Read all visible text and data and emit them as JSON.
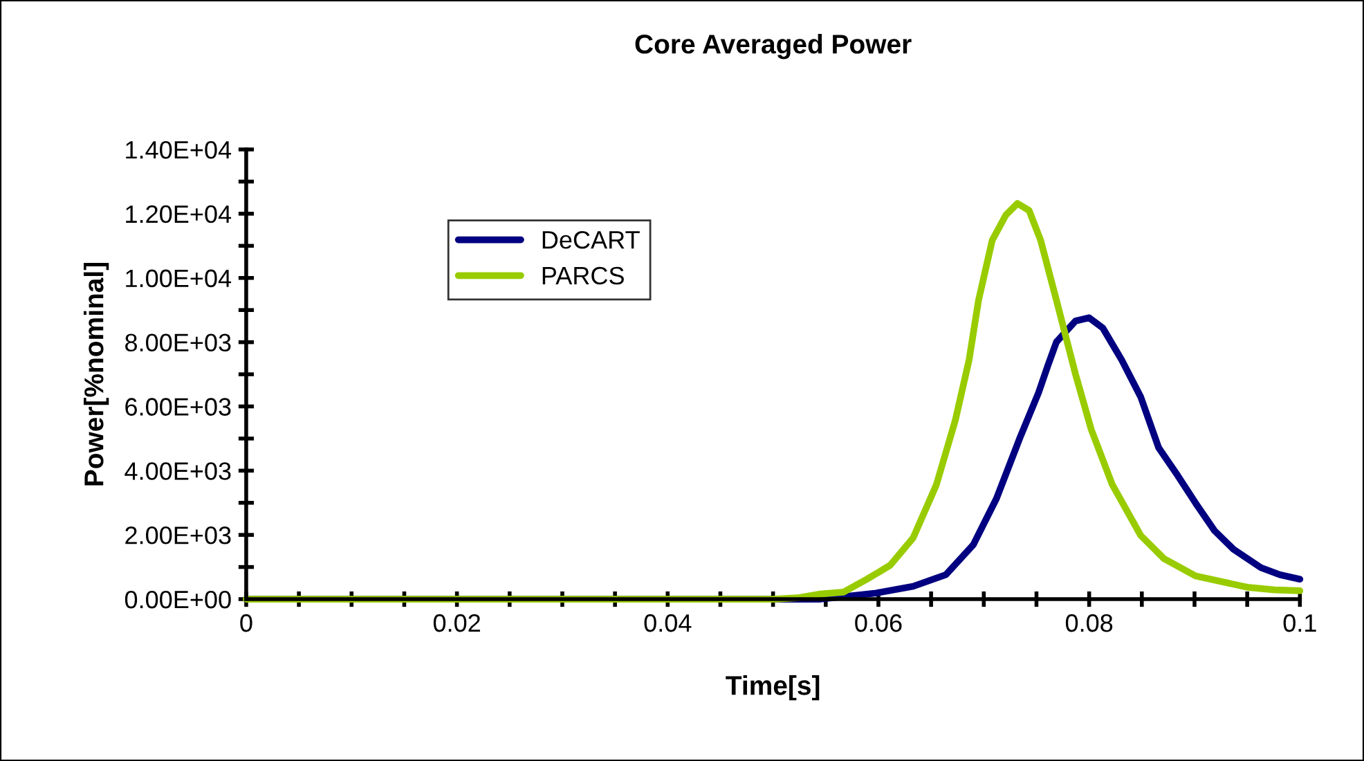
{
  "chart_data": {
    "type": "line",
    "title": "Core Averaged Power",
    "xlabel": "Time[s]",
    "ylabel": "Power[%nominal]",
    "xlim": [
      0,
      0.1
    ],
    "ylim": [
      0,
      14000
    ],
    "xticks": [
      0,
      {
        "value": 0.005,
        "label": null
      },
      {
        "value": 0.01,
        "label": null
      },
      {
        "value": 0.015,
        "label": null
      },
      0.02,
      {
        "value": 0.025,
        "label": null
      },
      {
        "value": 0.03,
        "label": null
      },
      {
        "value": 0.035,
        "label": null
      },
      0.04,
      {
        "value": 0.045,
        "label": null
      },
      {
        "value": 0.05,
        "label": null
      },
      {
        "value": 0.055,
        "label": null
      },
      0.06,
      {
        "value": 0.065,
        "label": null
      },
      {
        "value": 0.07,
        "label": null
      },
      {
        "value": 0.075,
        "label": null
      },
      0.08,
      {
        "value": 0.085,
        "label": null
      },
      {
        "value": 0.09,
        "label": null
      },
      {
        "value": 0.095,
        "label": null
      },
      0.1
    ],
    "yticks": [
      {
        "value": 0,
        "label": "0.00E+00"
      },
      {
        "value": 1000,
        "label": null
      },
      {
        "value": 2000,
        "label": "2.00E+03"
      },
      {
        "value": 3000,
        "label": null
      },
      {
        "value": 4000,
        "label": "4.00E+03"
      },
      {
        "value": 5000,
        "label": null
      },
      {
        "value": 6000,
        "label": "6.00E+03"
      },
      {
        "value": 7000,
        "label": null
      },
      {
        "value": 8000,
        "label": "8.00E+03"
      },
      {
        "value": 9000,
        "label": null
      },
      {
        "value": 10000,
        "label": "1.00E+04"
      },
      {
        "value": 11000,
        "label": null
      },
      {
        "value": 12000,
        "label": "1.20E+04"
      },
      {
        "value": 13000,
        "label": null
      },
      {
        "value": 14000,
        "label": "1.40E+04"
      }
    ],
    "grid": false,
    "legend": "top left",
    "marker": "none",
    "line_style": "solid",
    "series": [
      {
        "name": "DeCART",
        "color": "#000080",
        "x": [
          0,
          0.05,
          0.0545,
          0.0598,
          0.0633,
          0.0664,
          0.069,
          0.0712,
          0.0734,
          0.0752,
          0.0761,
          0.0769,
          0.0787,
          0.08,
          0.0813,
          0.0831,
          0.0849,
          0.0866,
          0.0884,
          0.0901,
          0.0919,
          0.0937,
          0.0963,
          0.0981,
          0.1
        ],
        "values": [
          0,
          0,
          0,
          190,
          400,
          760,
          1690,
          3130,
          5000,
          6430,
          7290,
          8010,
          8660,
          8760,
          8440,
          7440,
          6290,
          4710,
          3850,
          2990,
          2130,
          1550,
          980,
          760,
          620
        ]
      },
      {
        "name": "PARCS",
        "color": "#99cc00",
        "x": [
          0,
          0.05,
          0.0523,
          0.0545,
          0.0567,
          0.0589,
          0.0611,
          0.0633,
          0.0655,
          0.0673,
          0.0686,
          0.0695,
          0.0708,
          0.0721,
          0.0732,
          0.0743,
          0.0754,
          0.0769,
          0.0787,
          0.0802,
          0.0822,
          0.0849,
          0.0871,
          0.0901,
          0.095,
          0.0976,
          0.1
        ],
        "values": [
          0,
          0,
          40,
          160,
          220,
          620,
          1050,
          1910,
          3560,
          5570,
          7440,
          9300,
          11170,
          11960,
          12320,
          12100,
          11170,
          9300,
          7010,
          5280,
          3560,
          1980,
          1260,
          720,
          370,
          290,
          260
        ]
      }
    ]
  }
}
